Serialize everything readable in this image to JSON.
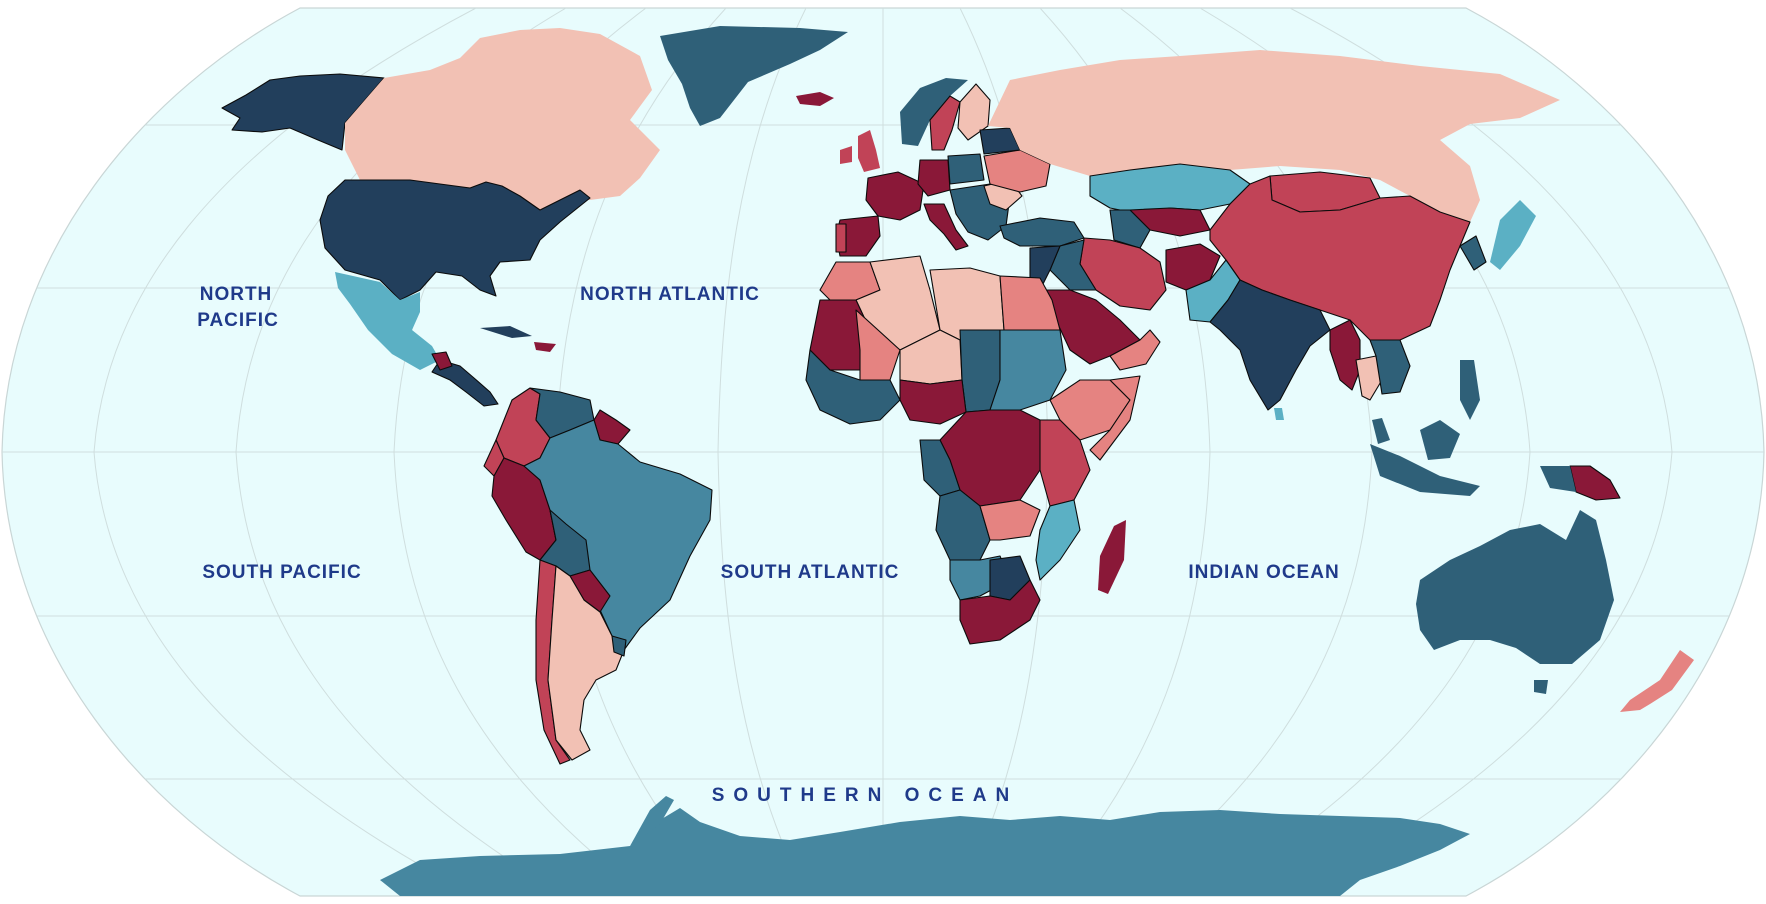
{
  "map": {
    "projection": "Robinson",
    "ocean_color": "#e8fcfd",
    "palette": {
      "light_pink": "#f2c1b4",
      "salmon": "#e58381",
      "rose": "#c14357",
      "crimson": "#8a1838",
      "light_teal": "#5bb0c4",
      "teal": "#4687a0",
      "dark_teal": "#2f6078",
      "navy": "#223f5c"
    },
    "ocean_labels": {
      "north_pacific_1": "NORTH",
      "north_pacific_2": "PACIFIC",
      "north_atlantic": "NORTH ATLANTIC",
      "south_pacific": "SOUTH PACIFIC",
      "south_atlantic": "SOUTH ATLANTIC",
      "indian_ocean": "INDIAN OCEAN",
      "southern_ocean": "SOUTHERN OCEAN"
    }
  }
}
